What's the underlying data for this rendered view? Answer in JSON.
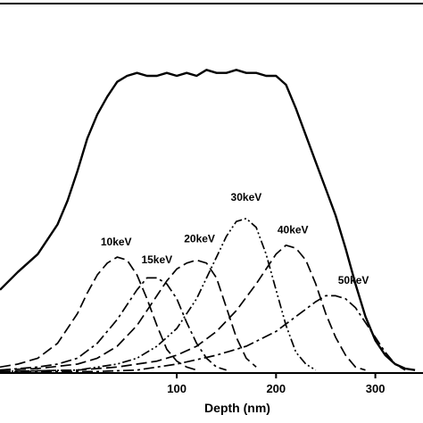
{
  "chart_data": {
    "type": "line",
    "title": "",
    "xlabel": "Depth (nm)",
    "ylabel": "",
    "xlim": [
      -78,
      348
    ],
    "ylim": [
      0,
      1.0
    ],
    "x_ticks": [
      100,
      200,
      300
    ],
    "grid": false,
    "legend": "none",
    "series": [
      {
        "style": "solid",
        "x": [
          -78,
          -60,
          -40,
          -20,
          -10,
          0,
          10,
          20,
          30,
          40,
          50,
          60,
          70,
          80,
          90,
          100,
          110,
          120,
          130,
          140,
          150,
          160,
          170,
          180,
          190,
          200,
          210,
          220,
          230,
          240,
          250,
          260,
          270,
          280,
          290,
          300,
          310,
          320,
          330,
          340
        ],
        "y": [
          0.28,
          0.34,
          0.4,
          0.5,
          0.58,
          0.68,
          0.79,
          0.87,
          0.93,
          0.98,
          1.0,
          1.01,
          1.0,
          1.0,
          1.01,
          1.0,
          1.01,
          1.0,
          1.02,
          1.01,
          1.01,
          1.02,
          1.01,
          1.01,
          1.0,
          1.0,
          0.97,
          0.89,
          0.8,
          0.71,
          0.62,
          0.53,
          0.42,
          0.3,
          0.19,
          0.11,
          0.06,
          0.03,
          0.015,
          0.01
        ]
      },
      {
        "name": "10keV",
        "style": "dash",
        "x": [
          -78,
          -60,
          -40,
          -20,
          0,
          10,
          20,
          30,
          40,
          50,
          60,
          70,
          80,
          90,
          100,
          110,
          120
        ],
        "y": [
          0.02,
          0.03,
          0.05,
          0.1,
          0.2,
          0.27,
          0.33,
          0.37,
          0.39,
          0.38,
          0.33,
          0.25,
          0.16,
          0.08,
          0.04,
          0.02,
          0.01
        ]
      },
      {
        "name": "15keV",
        "style": "dash-dot",
        "x": [
          -78,
          -40,
          -20,
          0,
          20,
          40,
          60,
          70,
          80,
          90,
          100,
          110,
          120,
          130,
          140,
          150
        ],
        "y": [
          0.01,
          0.02,
          0.03,
          0.05,
          0.1,
          0.18,
          0.28,
          0.32,
          0.32,
          0.3,
          0.25,
          0.17,
          0.1,
          0.05,
          0.02,
          0.01
        ]
      },
      {
        "name": "20keV",
        "style": "dash",
        "x": [
          -78,
          -40,
          0,
          20,
          40,
          60,
          80,
          90,
          100,
          110,
          120,
          130,
          140,
          150,
          160,
          170,
          180
        ],
        "y": [
          0.01,
          0.015,
          0.03,
          0.05,
          0.09,
          0.16,
          0.26,
          0.31,
          0.35,
          0.37,
          0.38,
          0.37,
          0.32,
          0.22,
          0.12,
          0.05,
          0.02
        ]
      },
      {
        "name": "30keV",
        "style": "dash-dot-dot",
        "x": [
          -78,
          0,
          40,
          60,
          80,
          100,
          120,
          140,
          150,
          160,
          170,
          180,
          190,
          200,
          210,
          220,
          230,
          240
        ],
        "y": [
          0.005,
          0.01,
          0.03,
          0.05,
          0.09,
          0.15,
          0.25,
          0.39,
          0.46,
          0.51,
          0.52,
          0.49,
          0.4,
          0.28,
          0.16,
          0.07,
          0.03,
          0.01
        ]
      },
      {
        "name": "40keV",
        "style": "dash",
        "x": [
          -78,
          0,
          40,
          80,
          100,
          120,
          140,
          160,
          180,
          200,
          210,
          220,
          230,
          240,
          250,
          260,
          270,
          280,
          290
        ],
        "y": [
          0.005,
          0.01,
          0.02,
          0.04,
          0.06,
          0.09,
          0.14,
          0.21,
          0.3,
          0.4,
          0.43,
          0.42,
          0.38,
          0.3,
          0.2,
          0.12,
          0.06,
          0.02,
          0.01
        ]
      },
      {
        "name": "50keV",
        "style": "dash-dot",
        "x": [
          -78,
          20,
          60,
          100,
          140,
          170,
          200,
          220,
          240,
          250,
          260,
          270,
          280,
          290,
          300,
          310,
          320,
          330
        ],
        "y": [
          0.005,
          0.005,
          0.01,
          0.03,
          0.06,
          0.09,
          0.14,
          0.19,
          0.24,
          0.26,
          0.26,
          0.25,
          0.22,
          0.17,
          0.12,
          0.07,
          0.03,
          0.01
        ]
      }
    ],
    "annotations": [
      {
        "text": "10keV",
        "x": 39,
        "y": 0.43
      },
      {
        "text": "15keV",
        "x": 80,
        "y": 0.37
      },
      {
        "text": "20keV",
        "x": 123,
        "y": 0.44
      },
      {
        "text": "30keV",
        "x": 170,
        "y": 0.58
      },
      {
        "text": "40keV",
        "x": 217,
        "y": 0.47
      },
      {
        "text": "50keV",
        "x": 278,
        "y": 0.3
      }
    ]
  }
}
